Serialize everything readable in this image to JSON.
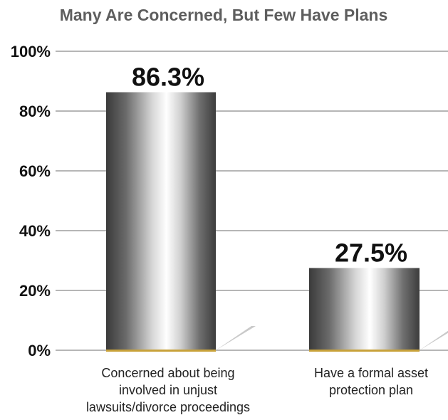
{
  "chart_data": {
    "type": "bar",
    "title": "Many Are Concerned, But Few Have Plans",
    "categories": [
      [
        "Concerned about being",
        "involved in unjust",
        "lawsuits/divorce proceedings"
      ],
      [
        "Have a formal asset",
        "protection plan"
      ]
    ],
    "values": [
      86.3,
      27.5
    ],
    "value_labels": [
      "86.3%",
      "27.5%"
    ],
    "yticks": [
      "0%",
      "20%",
      "40%",
      "60%",
      "80%",
      "100%"
    ],
    "ylim": [
      0,
      100
    ],
    "grid": true,
    "xlabel": "",
    "ylabel": ""
  }
}
